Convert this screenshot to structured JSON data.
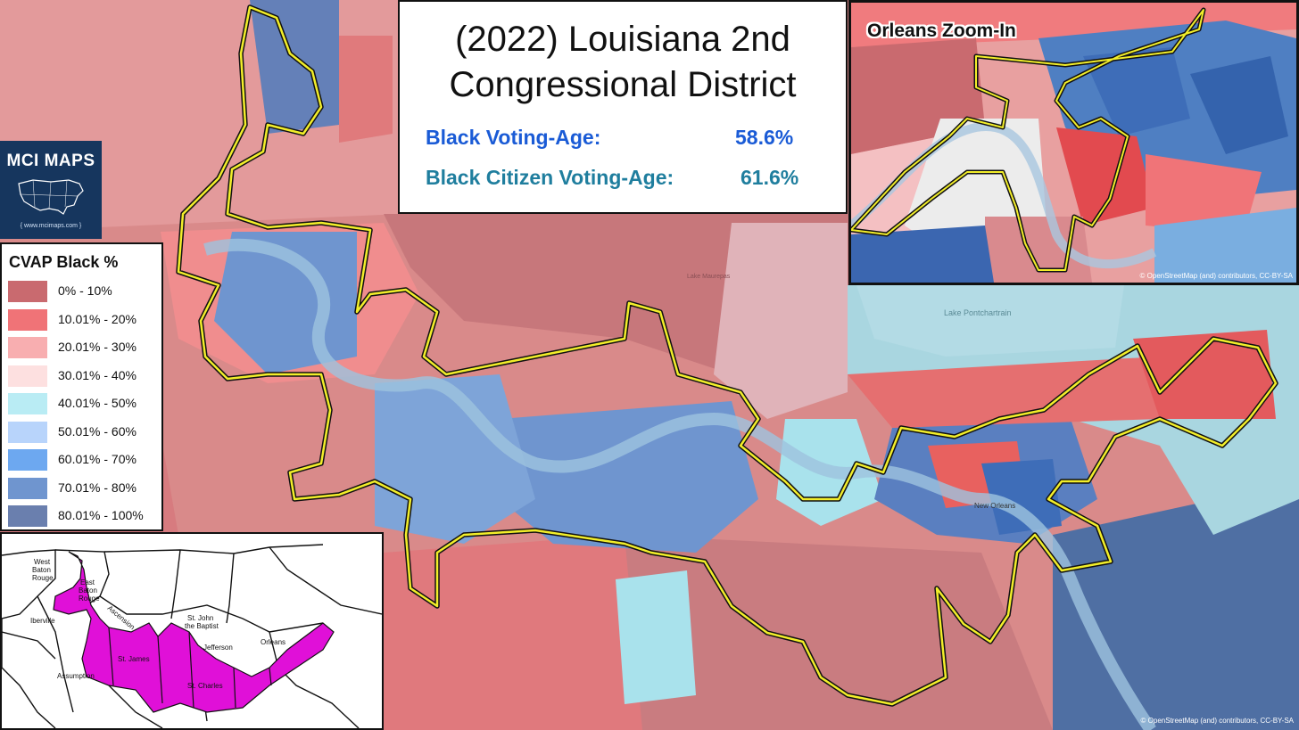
{
  "title": {
    "line1": "(2022) Louisiana 2nd",
    "line2": "Congressional District"
  },
  "stats": [
    {
      "label": "Black Voting-Age:",
      "value": "58.6%",
      "color": "#1a5bd6"
    },
    {
      "label": "Black Citizen Voting-Age:",
      "value": "61.6%",
      "color": "#1f7e9e"
    }
  ],
  "zoom": {
    "title": "Orleans Zoom-In",
    "credit": "© OpenStreetMap (and) contributors, CC-BY-SA"
  },
  "logo": {
    "name": "MCI MAPS",
    "url": "{ www.mcimaps.com }"
  },
  "legend": {
    "title": "CVAP Black  %",
    "items": [
      {
        "label": "0% - 10%",
        "color": "#c96a6f"
      },
      {
        "label": "10.01% - 20%",
        "color": "#f07377"
      },
      {
        "label": "20.01% - 30%",
        "color": "#f8aeb0"
      },
      {
        "label": "30.01% - 40%",
        "color": "#fde0e0"
      },
      {
        "label": "40.01% - 50%",
        "color": "#b9ecf4"
      },
      {
        "label": "50.01% - 60%",
        "color": "#b8d4fb"
      },
      {
        "label": "60.01% - 70%",
        "color": "#6da8f0"
      },
      {
        "label": "70.01% - 80%",
        "color": "#6f95cf"
      },
      {
        "label": "80.01% - 100%",
        "color": "#6a7fae"
      }
    ]
  },
  "parishes": [
    {
      "name": "West Baton Rouge",
      "lines": [
        "West",
        "Baton",
        "Rouge"
      ]
    },
    {
      "name": "East Baton Rouge",
      "lines": [
        "East",
        "Baton",
        "Rouge"
      ]
    },
    {
      "name": "Iberville",
      "lines": [
        "Iberville"
      ]
    },
    {
      "name": "Ascension",
      "lines": [
        "Ascension"
      ]
    },
    {
      "name": "St. John the Baptist",
      "lines": [
        "St. John",
        "the Baptist"
      ]
    },
    {
      "name": "Jefferson",
      "lines": [
        "Jefferson"
      ]
    },
    {
      "name": "Orleans",
      "lines": [
        "Orleans"
      ]
    },
    {
      "name": "St. James",
      "lines": [
        "St. James"
      ]
    },
    {
      "name": "Assumption",
      "lines": [
        "Assumption"
      ]
    },
    {
      "name": "St. Charles",
      "lines": [
        "St. Charles"
      ]
    }
  ],
  "map_labels": {
    "lake_pontchartrain": "Lake Pontchartrain",
    "new_orleans": "New Orleans",
    "lake_maurepas": "Lake Maurepas"
  },
  "credit": "© OpenStreetMap (and) contributors, CC-BY-SA",
  "colors": {
    "district_outline": "#f2ee2a",
    "parish_highlight": "#e010d8",
    "water": "#a9d6e0"
  }
}
